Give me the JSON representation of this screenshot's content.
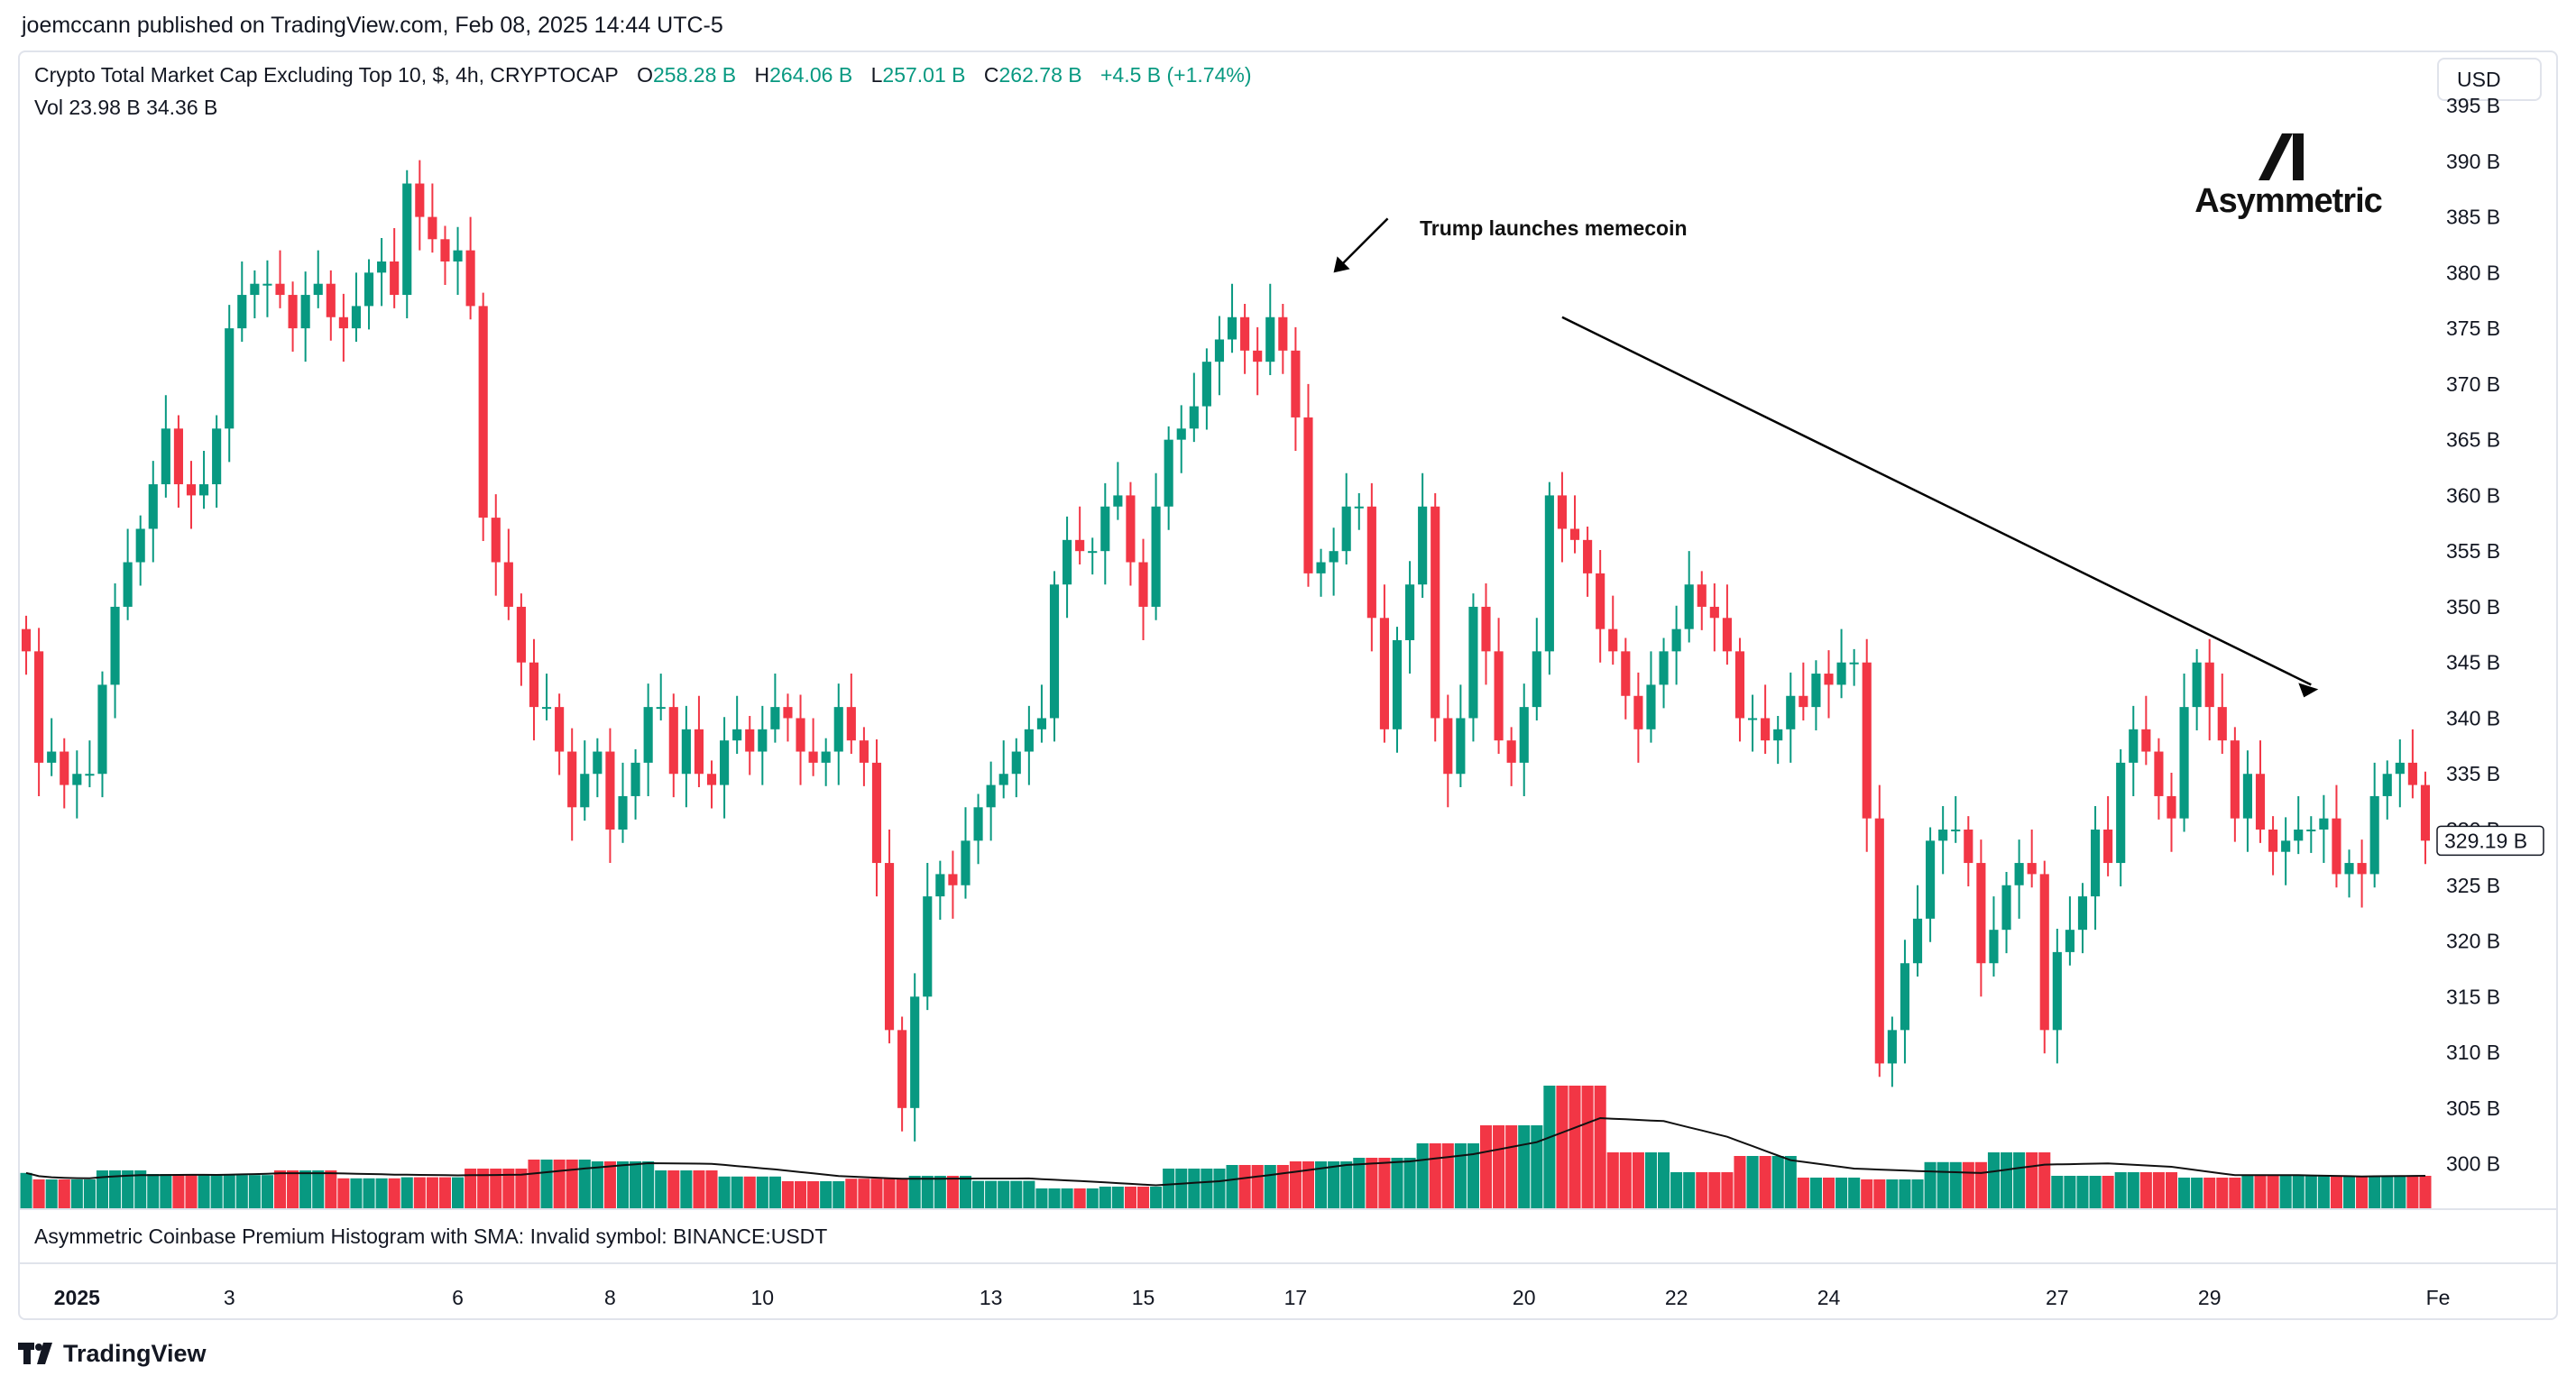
{
  "publisher_line": "joemccann published on TradingView.com, Feb 08, 2025 14:44 UTC-5",
  "legend": {
    "title": "Crypto Total Market Cap Excluding Top 10, $, 4h, CRYPTOCAP",
    "o_label": "O",
    "o_value": "258.28 B",
    "h_label": "H",
    "h_value": "264.06 B",
    "l_label": "L",
    "l_value": "257.01 B",
    "c_label": "C",
    "c_value": "262.78 B",
    "change": "+4.5 B (+1.74%)",
    "vol_label": "Vol",
    "vol_value_1": "23.98 B",
    "vol_value_2": "34.36 B"
  },
  "currency_button": "USD",
  "brand_text": "Asymmetric",
  "annotation_text": "Trump launches memecoin",
  "indicator_label": "Asymmetric Coinbase Premium Histogram with SMA: Invalid symbol: BINANCE:USDT",
  "tradingview_label": "TradingView",
  "price_tag": "329.19 B",
  "colors": {
    "up": "#089981",
    "down": "#f23645",
    "text": "#131722",
    "grid": "#e0e3eb"
  },
  "chart_data": {
    "type": "candlestick",
    "title": "Crypto Total Market Cap Excluding Top 10, $, 4h, CRYPTOCAP",
    "ylabel": "USD",
    "ylim": [
      296,
      398
    ],
    "y_ticks": [
      "395 B",
      "390 B",
      "385 B",
      "380 B",
      "375 B",
      "370 B",
      "365 B",
      "360 B",
      "355 B",
      "350 B",
      "345 B",
      "340 B",
      "335 B",
      "330 B",
      "325 B",
      "320 B",
      "315 B",
      "310 B",
      "305 B",
      "300 B"
    ],
    "x_ticks": [
      {
        "label": "2025",
        "bar": 4
      },
      {
        "label": "3",
        "bar": 16
      },
      {
        "label": "6",
        "bar": 34
      },
      {
        "label": "8",
        "bar": 46
      },
      {
        "label": "10",
        "bar": 58
      },
      {
        "label": "13",
        "bar": 76
      },
      {
        "label": "15",
        "bar": 88
      },
      {
        "label": "17",
        "bar": 100
      },
      {
        "label": "20",
        "bar": 118
      },
      {
        "label": "22",
        "bar": 130
      },
      {
        "label": "24",
        "bar": 142
      },
      {
        "label": "27",
        "bar": 160
      },
      {
        "label": "29",
        "bar": 172
      },
      {
        "label": "Fe",
        "bar": 190
      }
    ],
    "closes": [
      346,
      336,
      337,
      334,
      335,
      335,
      343,
      350,
      354,
      357,
      361,
      366,
      361,
      360,
      361,
      366,
      375,
      378,
      379,
      379,
      378,
      375,
      378,
      379,
      376,
      375,
      377,
      380,
      381,
      378,
      388,
      385,
      383,
      381,
      382,
      377,
      358,
      354,
      350,
      345,
      341,
      341,
      337,
      332,
      335,
      337,
      330,
      333,
      336,
      341,
      341,
      335,
      339,
      335,
      334,
      338,
      339,
      337,
      339,
      341,
      340,
      337,
      336,
      337,
      341,
      338,
      336,
      327,
      312,
      305,
      315,
      324,
      326,
      325,
      329,
      332,
      334,
      335,
      337,
      339,
      340,
      352,
      356,
      355,
      355,
      359,
      360,
      354,
      350,
      359,
      365,
      366,
      368,
      372,
      374,
      376,
      373,
      372,
      376,
      373,
      367,
      353,
      354,
      355,
      359,
      359,
      349,
      339,
      347,
      352,
      359,
      340,
      335,
      340,
      350,
      346,
      338,
      336,
      341,
      346,
      360,
      357,
      356,
      353,
      348,
      346,
      342,
      339,
      343,
      346,
      348,
      352,
      350,
      349,
      346,
      340,
      340,
      338,
      339,
      342,
      341,
      344,
      343,
      345,
      345,
      331,
      309,
      312,
      318,
      322,
      329,
      330,
      330,
      327,
      318,
      321,
      325,
      327,
      326,
      312,
      319,
      321,
      324,
      330,
      327,
      336,
      339,
      337,
      333,
      331,
      341,
      345,
      341,
      338,
      331,
      335,
      330,
      328,
      329,
      330,
      330,
      331,
      326,
      327,
      326,
      333,
      335,
      336,
      334,
      329
    ],
    "volume_ratio": [
      0.98,
      0.8,
      0.8,
      0.8,
      0.8,
      0.8,
      1.05,
      1.05,
      1.05,
      1.05,
      0.95,
      0.95,
      0.95,
      0.95,
      0.95,
      0.92,
      0.92,
      0.92,
      0.92,
      0.92,
      1.05,
      1.05,
      1.05,
      1.05,
      1.05,
      0.83,
      0.83,
      0.83,
      0.83,
      0.83,
      0.86,
      0.86,
      0.86,
      0.86,
      0.86,
      1.1,
      1.1,
      1.1,
      1.1,
      1.1,
      1.35,
      1.35,
      1.35,
      1.35,
      1.35,
      1.3,
      1.3,
      1.3,
      1.3,
      1.3,
      1.05,
      1.05,
      1.05,
      1.05,
      1.05,
      0.88,
      0.88,
      0.88,
      0.88,
      0.88,
      0.75,
      0.75,
      0.75,
      0.75,
      0.75,
      0.82,
      0.82,
      0.82,
      0.82,
      0.82,
      0.9,
      0.9,
      0.9,
      0.9,
      0.9,
      0.76,
      0.76,
      0.76,
      0.76,
      0.76,
      0.55,
      0.55,
      0.55,
      0.55,
      0.55,
      0.6,
      0.6,
      0.6,
      0.6,
      0.6,
      1.1,
      1.1,
      1.1,
      1.1,
      1.1,
      1.2,
      1.2,
      1.2,
      1.2,
      1.2,
      1.3,
      1.3,
      1.3,
      1.3,
      1.3,
      1.4,
      1.4,
      1.4,
      1.4,
      1.4,
      1.8,
      1.8,
      1.8,
      1.8,
      1.8,
      2.3,
      2.3,
      2.3,
      2.3,
      2.3,
      3.4,
      3.4,
      3.4,
      3.4,
      3.4,
      1.55,
      1.55,
      1.55,
      1.55,
      1.55,
      1.0,
      1.0,
      1.0,
      1.0,
      1.0,
      1.45,
      1.45,
      1.45,
      1.45,
      1.45,
      0.85,
      0.85,
      0.85,
      0.85,
      0.85,
      0.8,
      0.8,
      0.8,
      0.8,
      0.8,
      1.28,
      1.28,
      1.28,
      1.28,
      1.28,
      1.55,
      1.55,
      1.55,
      1.55,
      1.55,
      0.9,
      0.9,
      0.9,
      0.9,
      0.9,
      1.0,
      1.0,
      1.0,
      1.0,
      1.0,
      0.85,
      0.85,
      0.85,
      0.85,
      0.85,
      0.9,
      0.9,
      0.9,
      0.9,
      0.9,
      0.9,
      0.9,
      0.9,
      0.9,
      0.9,
      0.9,
      0.9,
      0.9,
      0.9,
      0.9
    ],
    "annotation": {
      "text": "Trump launches memecoin",
      "bar": 102
    }
  }
}
